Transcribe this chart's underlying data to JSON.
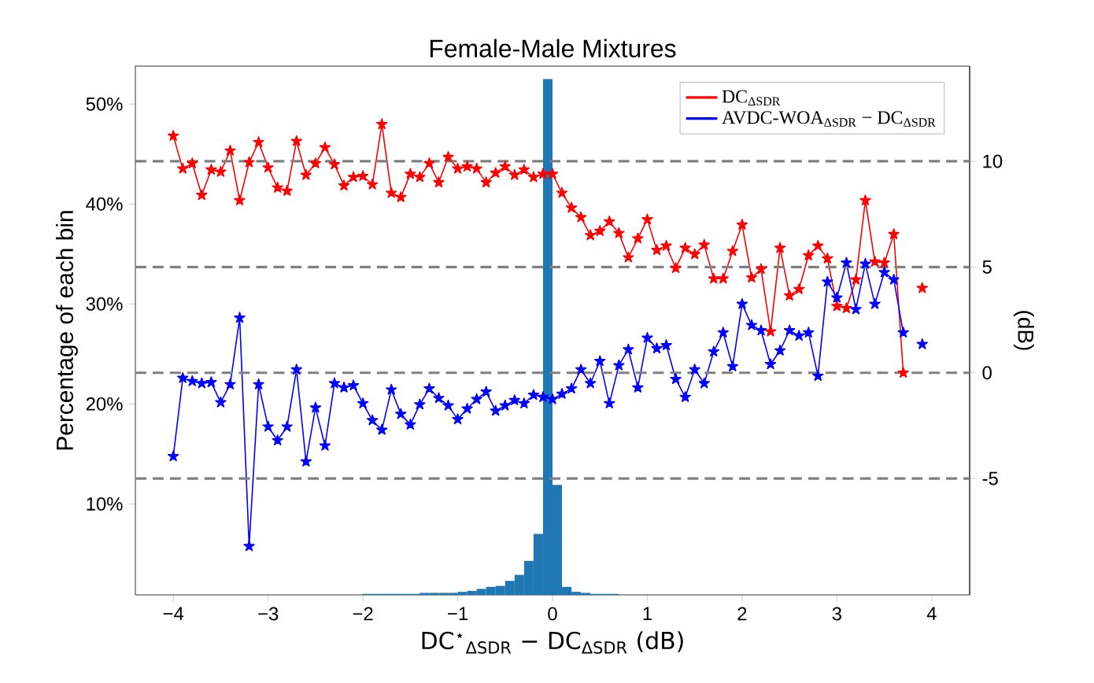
{
  "chart_data": {
    "type": "histogram",
    "title": "Female-Male Mixtures",
    "xlabel": "DC$^{⋆}$$_{ΔSDR}$ − DC$_{ΔSDR}$ (dB)",
    "ylabel": "Percentage of each bin",
    "y2label": "(dB)",
    "xlim": [
      -4.4,
      4.4
    ],
    "xticks": [
      {
        "value": -4,
        "label": "−4"
      },
      {
        "value": -3,
        "label": "−3"
      },
      {
        "value": -2,
        "label": "−2"
      },
      {
        "value": -1,
        "label": "−1"
      },
      {
        "value": 0,
        "label": "0"
      },
      {
        "value": 1,
        "label": "1"
      },
      {
        "value": 2,
        "label": "2"
      },
      {
        "value": 3,
        "label": "3"
      },
      {
        "value": 4,
        "label": "4"
      }
    ],
    "ylim": [
      0.9,
      53.8
    ],
    "yticks": [
      {
        "value": 10,
        "label": "10%"
      },
      {
        "value": 20,
        "label": "20%"
      },
      {
        "value": 30,
        "label": "30%"
      },
      {
        "value": 40,
        "label": "40%"
      },
      {
        "value": 50,
        "label": "50%"
      }
    ],
    "y2lim": [
      -10.5,
      14.5
    ],
    "y2ticks": [
      -5,
      0,
      5,
      10
    ],
    "legend": "top right",
    "marker": "star",
    "ref_lines": [
      {
        "axis": "y2",
        "value": -5,
        "color": "#808080",
        "line_style": "dashed"
      },
      {
        "axis": "y2",
        "value": 0,
        "color": "#808080",
        "line_style": "dashed"
      },
      {
        "axis": "y2",
        "value": 5,
        "color": "#808080",
        "line_style": "dashed"
      },
      {
        "axis": "y2",
        "value": 10,
        "color": "#808080",
        "line_style": "dashed"
      }
    ],
    "series": [
      {
        "color": "#1f77b4",
        "bins": [
          -2.0,
          -1.9,
          -1.8,
          -1.7,
          -1.6,
          -1.5,
          -1.4,
          -1.3,
          -1.2,
          -1.1,
          -1.0,
          -0.9,
          -0.8,
          -0.7,
          -0.6,
          -0.5,
          -0.4,
          -0.3,
          -0.2,
          -0.1,
          0.0,
          0.1,
          0.2,
          0.3,
          0.4,
          0.5,
          0.6,
          0.7,
          0.8
        ],
        "values": [
          1.0,
          1.0,
          1.0,
          1.0,
          1.0,
          1.0,
          1.1,
          1.1,
          1.1,
          1.1,
          1.2,
          1.3,
          1.5,
          1.7,
          1.8,
          2.3,
          2.9,
          4.3,
          7.0,
          52.5,
          11.9,
          1.7,
          1.2,
          1.1,
          1.0,
          1.0,
          1.0,
          0.9
        ]
      },
      {
        "type": "line",
        "axis": "y2",
        "name": "DC$_{ΔSDR}$",
        "color": "#ff0000",
        "x": [
          -4.0,
          -3.9,
          -3.8,
          -3.7,
          -3.6,
          -3.5,
          -3.4,
          -3.3,
          -3.2,
          -3.1,
          -3.0,
          -2.9,
          -2.8,
          -2.7,
          -2.6,
          -2.5,
          -2.4,
          -2.3,
          -2.2,
          -2.1,
          -2.0,
          -1.9,
          -1.8,
          -1.7,
          -1.6,
          -1.5,
          -1.4,
          -1.3,
          -1.2,
          -1.1,
          -1.0,
          -0.9,
          -0.8,
          -0.7,
          -0.6,
          -0.5,
          -0.4,
          -0.3,
          -0.2,
          -0.1,
          0.0,
          0.1,
          0.2,
          0.3,
          0.4,
          0.5,
          0.6,
          0.7,
          0.8,
          0.9,
          1.0,
          1.1,
          1.2,
          1.3,
          1.4,
          1.5,
          1.6,
          1.7,
          1.8,
          1.9,
          2.0,
          2.1,
          2.2,
          2.3,
          2.4,
          2.5,
          2.6,
          2.7,
          2.8,
          2.9,
          3.0,
          3.1,
          3.2,
          3.3,
          3.4,
          3.5,
          3.6,
          3.7,
          3.8,
          3.9
        ],
        "values": [
          11.2,
          9.65,
          9.9,
          8.4,
          9.6,
          9.5,
          10.5,
          8.15,
          9.95,
          10.9,
          9.7,
          8.75,
          8.6,
          10.95,
          9.35,
          9.9,
          10.65,
          9.85,
          8.85,
          9.25,
          9.3,
          8.9,
          11.75,
          8.5,
          8.3,
          9.4,
          9.25,
          9.9,
          9.0,
          10.2,
          9.65,
          9.75,
          9.65,
          9.0,
          9.45,
          9.75,
          9.35,
          9.6,
          9.25,
          9.4,
          9.4,
          8.5,
          7.8,
          7.35,
          6.5,
          6.7,
          7.15,
          6.6,
          5.45,
          6.35,
          7.25,
          5.8,
          6.0,
          4.95,
          5.9,
          5.6,
          6.05,
          4.45,
          4.45,
          5.75,
          7.0,
          4.5,
          4.9,
          1.95,
          5.9,
          3.65,
          3.95,
          5.55,
          6.0,
          5.4,
          3.15,
          3.05,
          4.4,
          8.15,
          5.25,
          5.2,
          6.55,
          0.0,
          null,
          4.0
        ]
      },
      {
        "type": "line",
        "axis": "y2",
        "name": "AVDC-WOA$_{ΔSDR}$ − DC$_{ΔSDR}$",
        "color": "#0000ff",
        "x": [
          -4.0,
          -3.9,
          -3.8,
          -3.7,
          -3.6,
          -3.5,
          -3.4,
          -3.3,
          -3.2,
          -3.1,
          -3.0,
          -2.9,
          -2.8,
          -2.7,
          -2.6,
          -2.5,
          -2.4,
          -2.3,
          -2.2,
          -2.1,
          -2.0,
          -1.9,
          -1.8,
          -1.7,
          -1.6,
          -1.5,
          -1.4,
          -1.3,
          -1.2,
          -1.1,
          -1.0,
          -0.9,
          -0.8,
          -0.7,
          -0.6,
          -0.5,
          -0.4,
          -0.3,
          -0.2,
          -0.1,
          0.0,
          0.1,
          0.2,
          0.3,
          0.4,
          0.5,
          0.6,
          0.7,
          0.8,
          0.9,
          1.0,
          1.1,
          1.2,
          1.3,
          1.4,
          1.5,
          1.6,
          1.7,
          1.8,
          1.9,
          2.0,
          2.1,
          2.2,
          2.3,
          2.4,
          2.5,
          2.6,
          2.7,
          2.8,
          2.9,
          3.0,
          3.1,
          3.2,
          3.3,
          3.4,
          3.5,
          3.6,
          3.7,
          3.8,
          3.9
        ],
        "values": [
          -3.95,
          -0.25,
          -0.4,
          -0.5,
          -0.45,
          -1.4,
          -0.55,
          2.6,
          -8.2,
          -0.55,
          -2.55,
          -3.2,
          -2.55,
          0.15,
          -4.2,
          -1.65,
          -3.45,
          -0.5,
          -0.7,
          -0.6,
          -1.45,
          -2.25,
          -2.7,
          -0.8,
          -1.95,
          -2.45,
          -1.5,
          -0.75,
          -1.2,
          -1.55,
          -2.2,
          -1.7,
          -1.25,
          -0.9,
          -1.8,
          -1.55,
          -1.3,
          -1.45,
          -1.05,
          -1.15,
          -1.25,
          -1.0,
          -0.75,
          0.15,
          -0.5,
          0.55,
          -1.45,
          0.35,
          1.1,
          -0.7,
          1.65,
          1.15,
          1.3,
          -0.3,
          -1.15,
          0.15,
          -0.5,
          1.0,
          1.9,
          0.3,
          3.25,
          2.25,
          2.0,
          0.4,
          1.05,
          2.0,
          1.75,
          1.9,
          -0.15,
          4.3,
          3.55,
          5.2,
          3.0,
          5.15,
          3.25,
          4.75,
          4.4,
          1.9,
          null,
          1.35
        ]
      }
    ]
  }
}
